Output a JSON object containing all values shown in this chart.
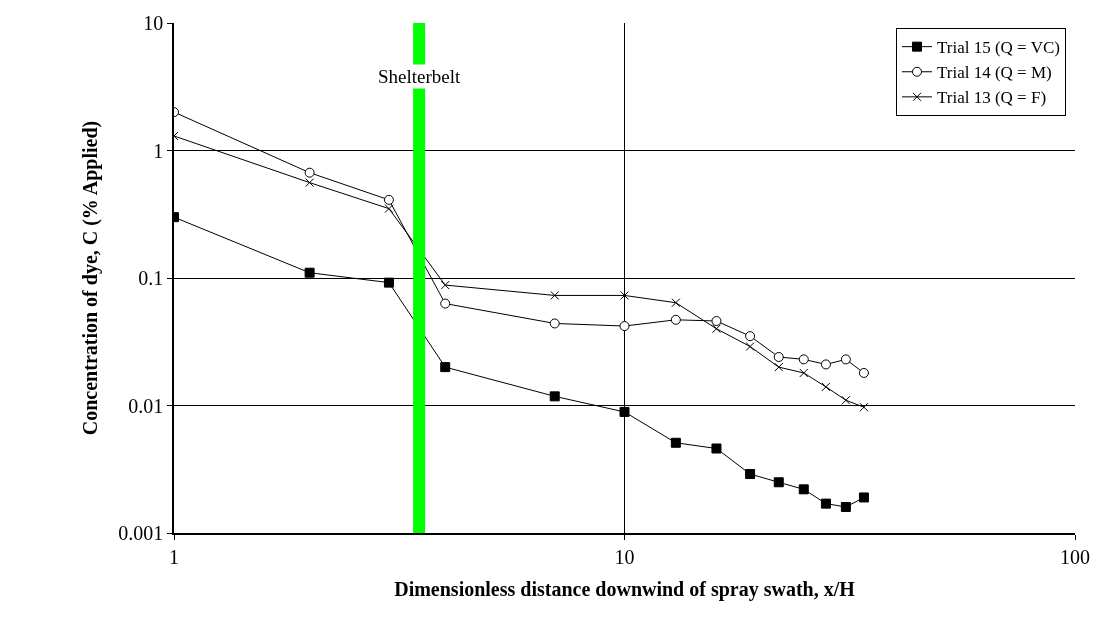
{
  "chart_data": {
    "type": "line",
    "xlabel": "Dimensionless distance downwind of spray swath, x/H",
    "ylabel": "Concentration of dye, C (% Applied)",
    "x": [
      1,
      2,
      3,
      4,
      7,
      10,
      13,
      16,
      19,
      22,
      25,
      28,
      31,
      34
    ],
    "series": [
      {
        "name": "Trial 15 (Q = VC)",
        "color": "#000000",
        "marker": "square",
        "values": [
          0.3,
          0.11,
          0.092,
          0.02,
          0.0118,
          0.0089,
          0.0051,
          0.0046,
          0.0029,
          0.0025,
          0.0022,
          0.0017,
          0.0016,
          0.0019
        ]
      },
      {
        "name": "Trial 14 (Q = M)",
        "color": "#000000",
        "marker": "circle",
        "values": [
          2.0,
          0.67,
          0.41,
          0.063,
          0.044,
          0.042,
          0.047,
          0.046,
          0.035,
          0.024,
          0.023,
          0.021,
          0.023,
          0.018
        ]
      },
      {
        "name": "Trial 13 (Q = F)",
        "color": "#000000",
        "marker": "cross",
        "values": [
          1.3,
          0.56,
          0.35,
          0.088,
          0.073,
          0.073,
          0.064,
          0.04,
          0.029,
          0.02,
          0.018,
          0.014,
          0.011,
          0.0097
        ]
      }
    ],
    "ref_lines": [
      {
        "axis": "x",
        "value": 3.5,
        "label": "Shelterbelt",
        "color": "#00ff00"
      }
    ],
    "log": "xy",
    "xlim": [
      1,
      100
    ],
    "xticks": [
      1,
      10,
      100
    ],
    "ylim": [
      0.001,
      10
    ],
    "yticks": [
      0.001,
      0.01,
      0.1,
      1,
      10
    ],
    "grid": true,
    "legend": "top right",
    "line_style": "solid"
  }
}
